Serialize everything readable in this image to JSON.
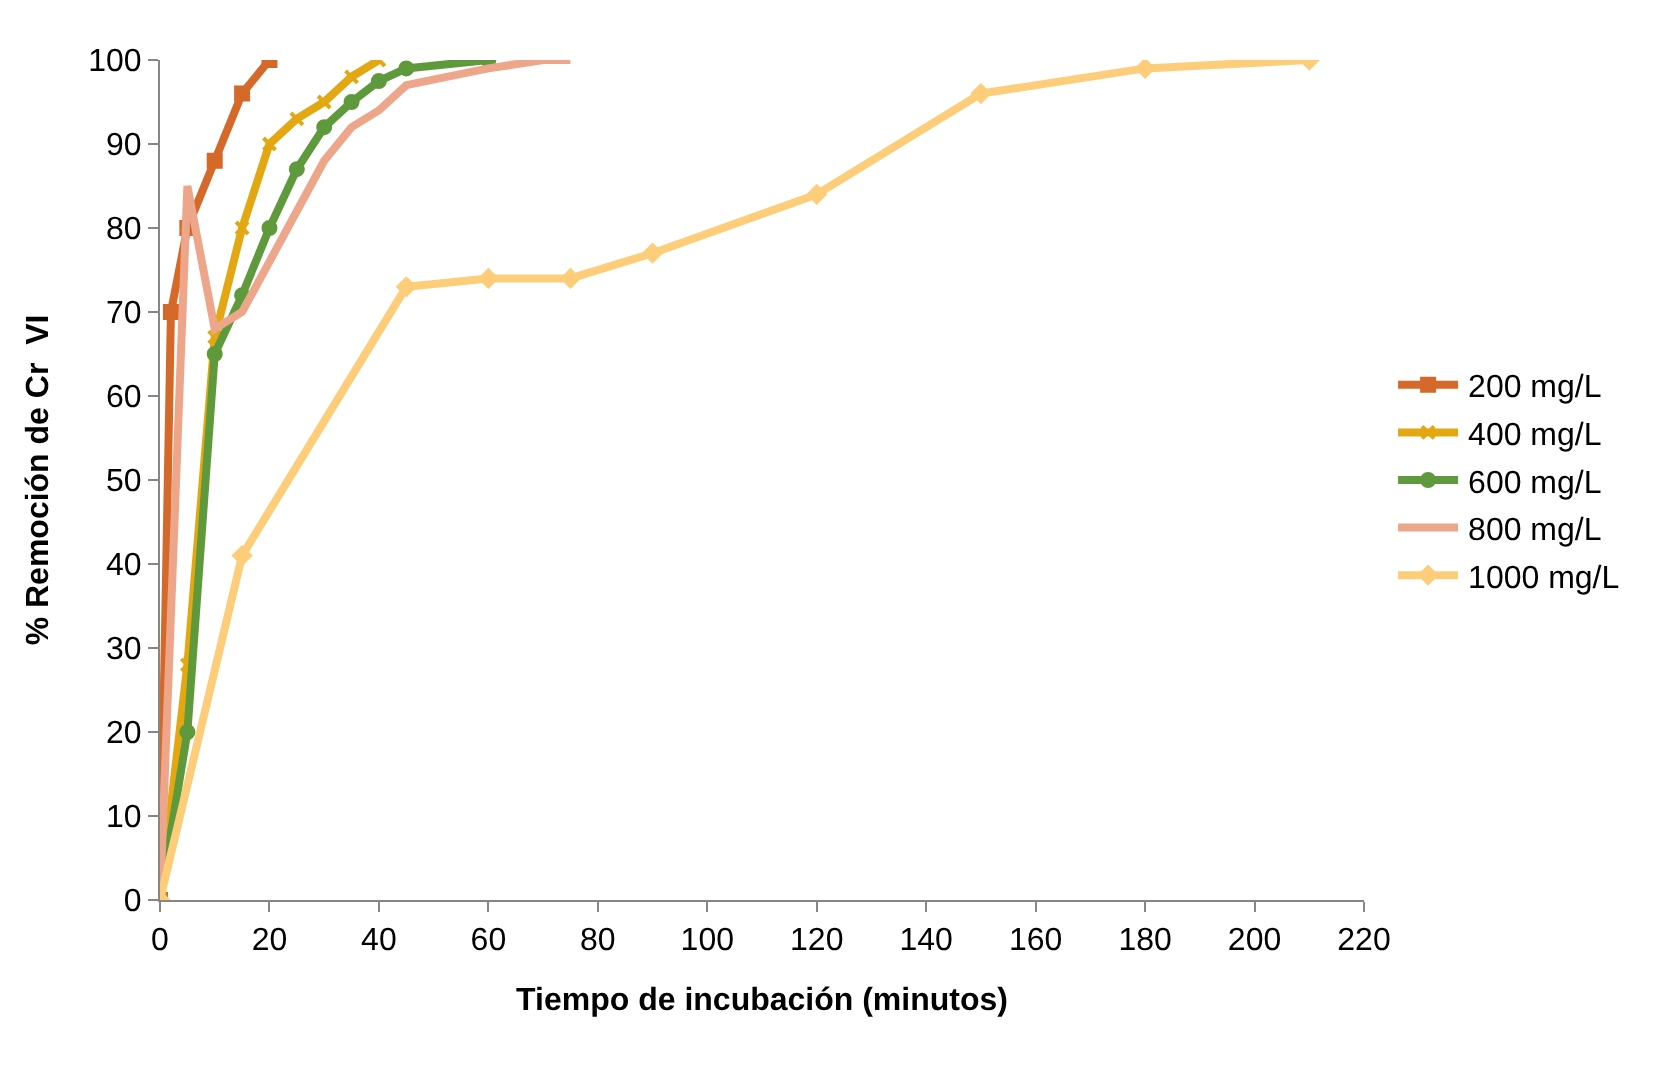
{
  "chart_data": {
    "type": "line",
    "xlabel": "Tiempo de incubación (minutos)",
    "ylabel": "% Remoción de Cr  VI",
    "xlim": [
      0,
      220
    ],
    "xticks": [
      0,
      20,
      40,
      60,
      80,
      100,
      120,
      140,
      160,
      180,
      200,
      220
    ],
    "ylim": [
      0,
      100
    ],
    "yticks": [
      0,
      10,
      20,
      30,
      40,
      50,
      60,
      70,
      80,
      90,
      100
    ],
    "legend": "right",
    "series": [
      {
        "name": "200 mg/L",
        "color": "#d4692a",
        "marker": "square",
        "x": [
          0,
          2,
          5,
          10,
          15,
          20
        ],
        "values": [
          0,
          70,
          80,
          88,
          96,
          100
        ]
      },
      {
        "name": "400 mg/L",
        "color": "#e3a712",
        "marker": "cross",
        "x": [
          0,
          5,
          10,
          15,
          20,
          25,
          30,
          35,
          40
        ],
        "values": [
          0,
          28,
          67,
          80,
          90,
          93,
          95,
          98,
          100
        ]
      },
      {
        "name": "600 mg/L",
        "color": "#5e9a3c",
        "marker": "circle",
        "x": [
          0,
          5,
          10,
          15,
          20,
          25,
          30,
          35,
          40,
          45,
          60
        ],
        "values": [
          0,
          20,
          65,
          72,
          80,
          87,
          92,
          95,
          97.5,
          99,
          100
        ]
      },
      {
        "name": "800 mg/L",
        "color": "#eea68a",
        "marker": "none",
        "x": [
          0,
          5,
          10,
          15,
          20,
          30,
          35,
          40,
          45,
          60,
          70,
          75
        ],
        "values": [
          0,
          85,
          68,
          70,
          76,
          88,
          92,
          94,
          97,
          99,
          100,
          100
        ]
      },
      {
        "name": "1000 mg/L",
        "color": "#fdcd7a",
        "marker": "diamond",
        "x": [
          0,
          15,
          45,
          60,
          75,
          90,
          120,
          150,
          180,
          210
        ],
        "values": [
          0,
          41,
          73,
          74,
          74,
          77,
          84,
          96,
          99,
          100
        ]
      }
    ]
  }
}
